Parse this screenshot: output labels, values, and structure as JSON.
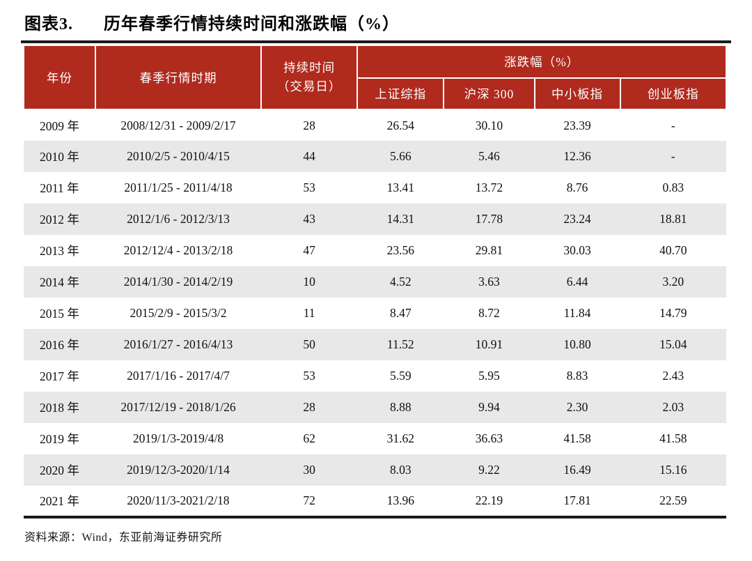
{
  "figure_label": "图表3.",
  "figure_title": "历年春季行情持续时间和涨跌幅（%）",
  "source_note": "资料来源：Wind，东亚前海证券研究所",
  "colors": {
    "header_red": "#B02A1E",
    "stripe_gray": "#E8E8E8",
    "rule_black": "#1a1a1a"
  },
  "table": {
    "header": {
      "year": "年份",
      "period": "春季行情时期",
      "duration_line1": "持续时间",
      "duration_line2": "（交易日）",
      "change_group": "涨跌幅（%）",
      "sub": [
        "上证综指",
        "沪深 300",
        "中小板指",
        "创业板指"
      ]
    }
  },
  "chart_data": {
    "type": "table",
    "title": "历年春季行情持续时间和涨跌幅（%）",
    "columns": [
      "年份",
      "春季行情时期",
      "持续时间（交易日）",
      "上证综指",
      "沪深 300",
      "中小板指",
      "创业板指"
    ],
    "column_group": {
      "label": "涨跌幅（%）",
      "spans": [
        "上证综指",
        "沪深 300",
        "中小板指",
        "创业板指"
      ]
    },
    "rows": [
      [
        "2009 年",
        "2008/12/31 - 2009/2/17",
        "28",
        "26.54",
        "30.10",
        "23.39",
        "-"
      ],
      [
        "2010 年",
        "2010/2/5 - 2010/4/15",
        "44",
        "5.66",
        "5.46",
        "12.36",
        "-"
      ],
      [
        "2011 年",
        "2011/1/25 - 2011/4/18",
        "53",
        "13.41",
        "13.72",
        "8.76",
        "0.83"
      ],
      [
        "2012 年",
        "2012/1/6 - 2012/3/13",
        "43",
        "14.31",
        "17.78",
        "23.24",
        "18.81"
      ],
      [
        "2013 年",
        "2012/12/4 - 2013/2/18",
        "47",
        "23.56",
        "29.81",
        "30.03",
        "40.70"
      ],
      [
        "2014 年",
        "2014/1/30 - 2014/2/19",
        "10",
        "4.52",
        "3.63",
        "6.44",
        "3.20"
      ],
      [
        "2015 年",
        "2015/2/9 - 2015/3/2",
        "11",
        "8.47",
        "8.72",
        "11.84",
        "14.79"
      ],
      [
        "2016 年",
        "2016/1/27 - 2016/4/13",
        "50",
        "11.52",
        "10.91",
        "10.80",
        "15.04"
      ],
      [
        "2017 年",
        "2017/1/16 - 2017/4/7",
        "53",
        "5.59",
        "5.95",
        "8.83",
        "2.43"
      ],
      [
        "2018 年",
        "2017/12/19 - 2018/1/26",
        "28",
        "8.88",
        "9.94",
        "2.30",
        "2.03"
      ],
      [
        "2019 年",
        "2019/1/3-2019/4/8",
        "62",
        "31.62",
        "36.63",
        "41.58",
        "41.58"
      ],
      [
        "2020 年",
        "2019/12/3-2020/1/14",
        "30",
        "8.03",
        "9.22",
        "16.49",
        "15.16"
      ],
      [
        "2021 年",
        "2020/11/3-2021/2/18",
        "72",
        "13.96",
        "22.19",
        "17.81",
        "22.59"
      ]
    ]
  }
}
